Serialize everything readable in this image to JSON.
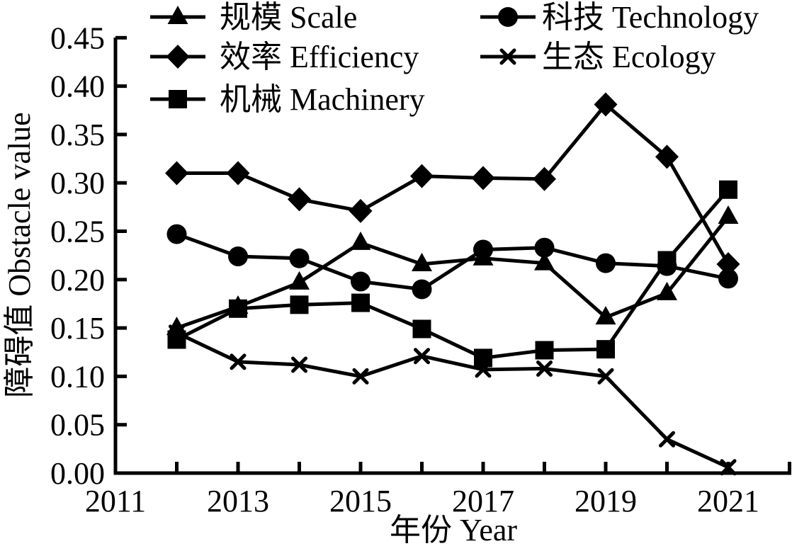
{
  "colors": {
    "foreground": "#000000",
    "background": "#ffffff"
  },
  "chart_data": {
    "type": "line",
    "title": "",
    "xlabel": "年份 Year",
    "ylabel": "障碍值 Obstacle value",
    "xlim": [
      2011,
      2022
    ],
    "ylim": [
      0.0,
      0.45
    ],
    "grid": false,
    "legend_position": "top",
    "x": [
      2012,
      2013,
      2014,
      2015,
      2016,
      2017,
      2018,
      2019,
      2020,
      2021
    ],
    "x_tick_years": [
      2011,
      2012,
      2013,
      2014,
      2015,
      2016,
      2017,
      2018,
      2019,
      2020,
      2021,
      2022
    ],
    "x_tick_labels": [
      {
        "year": 2011,
        "label": "2011"
      },
      {
        "year": 2013,
        "label": "2013"
      },
      {
        "year": 2015,
        "label": "2015"
      },
      {
        "year": 2017,
        "label": "2017"
      },
      {
        "year": 2019,
        "label": "2019"
      },
      {
        "year": 2021,
        "label": "2021"
      }
    ],
    "y_tick_values": [
      0.0,
      0.05,
      0.1,
      0.15,
      0.2,
      0.25,
      0.3,
      0.35,
      0.4,
      0.45
    ],
    "y_tick_labels": [
      "0.00",
      "0.05",
      "0.10",
      "0.15",
      "0.20",
      "0.25",
      "0.30",
      "0.35",
      "0.40",
      "0.45"
    ],
    "series": [
      {
        "id": "scale",
        "name": "规模 Scale",
        "marker": "triangle",
        "color": "#000000",
        "values": [
          0.15,
          0.172,
          0.197,
          0.238,
          0.216,
          0.222,
          0.217,
          0.161,
          0.186,
          0.265
        ]
      },
      {
        "id": "technology",
        "name": "科技 Technology",
        "marker": "circle",
        "color": "#000000",
        "values": [
          0.247,
          0.224,
          0.222,
          0.198,
          0.19,
          0.231,
          0.233,
          0.217,
          0.214,
          0.201
        ]
      },
      {
        "id": "efficiency",
        "name": "效率 Efficiency",
        "marker": "diamond",
        "color": "#000000",
        "values": [
          0.31,
          0.31,
          0.283,
          0.271,
          0.307,
          0.305,
          0.304,
          0.381,
          0.327,
          0.216
        ]
      },
      {
        "id": "machinery",
        "name": "机械 Machinery",
        "marker": "square",
        "color": "#000000",
        "values": [
          0.138,
          0.17,
          0.174,
          0.176,
          0.149,
          0.119,
          0.127,
          0.128,
          0.22,
          0.293
        ]
      },
      {
        "id": "ecology",
        "name": "生态 Ecology",
        "marker": "x",
        "color": "#000000",
        "values": [
          0.145,
          0.115,
          0.112,
          0.1,
          0.121,
          0.107,
          0.108,
          0.1,
          0.035,
          0.006
        ]
      }
    ],
    "draw_order": [
      "ecology",
      "scale",
      "technology",
      "machinery",
      "efficiency"
    ],
    "legend": [
      {
        "series": "scale",
        "label": "规模 Scale",
        "column": 0,
        "row": 0
      },
      {
        "series": "technology",
        "label": "科技 Technology",
        "column": 1,
        "row": 0
      },
      {
        "series": "efficiency",
        "label": "效率 Efficiency",
        "column": 0,
        "row": 1
      },
      {
        "series": "ecology",
        "label": "生态 Ecology",
        "column": 1,
        "row": 1
      },
      {
        "series": "machinery",
        "label": "机械 Machinery",
        "column": 0,
        "row": 2
      }
    ]
  }
}
